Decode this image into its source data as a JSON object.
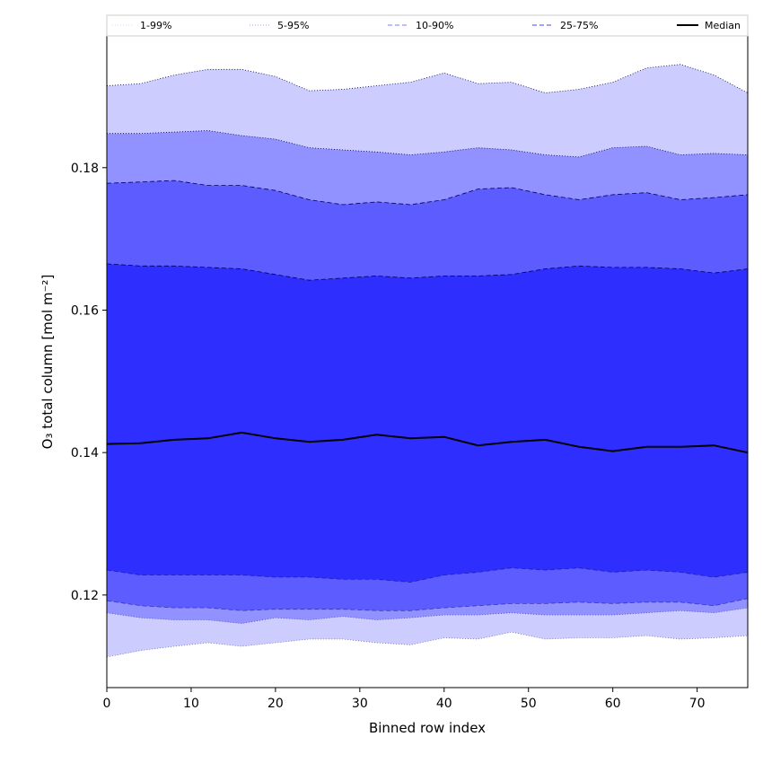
{
  "chart_data": {
    "type": "area",
    "xlabel": "Binned row index",
    "ylabel": "O₃ total column [mol m⁻²]",
    "xlim": [
      0,
      76
    ],
    "ylim": [
      0.107,
      0.1985
    ],
    "x_ticks": [
      "0",
      "10",
      "20",
      "30",
      "40",
      "50",
      "60",
      "70"
    ],
    "y_ticks": [
      "0.12",
      "0.14",
      "0.16",
      "0.18"
    ],
    "x_tick_values": [
      0,
      10,
      20,
      30,
      40,
      50,
      60,
      70
    ],
    "y_tick_values": [
      0.12,
      0.14,
      0.16,
      0.18
    ],
    "grid": false,
    "legend_position": "top",
    "x": [
      0,
      4,
      8,
      12,
      16,
      20,
      24,
      28,
      32,
      36,
      40,
      44,
      48,
      52,
      56,
      60,
      64,
      68,
      72,
      76
    ],
    "bands": [
      {
        "name": "1-99%",
        "color": "#ccccff",
        "edge_style": "dotted",
        "lower": [
          0.1113,
          0.1122,
          0.1128,
          0.1133,
          0.1128,
          0.1133,
          0.1138,
          0.1138,
          0.1133,
          0.113,
          0.114,
          0.1138,
          0.1148,
          0.1138,
          0.114,
          0.114,
          0.1143,
          0.1138,
          0.114,
          0.1143
        ],
        "upper": [
          0.1915,
          0.1918,
          0.193,
          0.1938,
          0.1938,
          0.1928,
          0.1908,
          0.191,
          0.1915,
          0.192,
          0.1933,
          0.1918,
          0.192,
          0.1905,
          0.191,
          0.192,
          0.194,
          0.1945,
          0.193,
          0.1905
        ]
      },
      {
        "name": "5-95%",
        "color": "#9191ff",
        "edge_style": "dotted",
        "lower": [
          0.1175,
          0.1168,
          0.1165,
          0.1165,
          0.116,
          0.1168,
          0.1165,
          0.117,
          0.1165,
          0.1168,
          0.1172,
          0.1172,
          0.1175,
          0.1172,
          0.1172,
          0.1172,
          0.1175,
          0.1178,
          0.1175,
          0.1182
        ],
        "upper": [
          0.1848,
          0.1848,
          0.185,
          0.1852,
          0.1845,
          0.184,
          0.1828,
          0.1825,
          0.1822,
          0.1818,
          0.1822,
          0.1828,
          0.1825,
          0.1818,
          0.1815,
          0.1828,
          0.183,
          0.1818,
          0.182,
          0.1818
        ]
      },
      {
        "name": "10-90%",
        "color": "#5c5cff",
        "edge_style": "dashed",
        "lower": [
          0.1192,
          0.1185,
          0.1182,
          0.1182,
          0.1178,
          0.118,
          0.118,
          0.118,
          0.1178,
          0.1178,
          0.1182,
          0.1185,
          0.1188,
          0.1188,
          0.119,
          0.1188,
          0.119,
          0.119,
          0.1185,
          0.1195
        ],
        "upper": [
          0.1778,
          0.178,
          0.1782,
          0.1775,
          0.1775,
          0.1768,
          0.1755,
          0.1748,
          0.1752,
          0.1748,
          0.1755,
          0.177,
          0.1772,
          0.1762,
          0.1755,
          0.1762,
          0.1765,
          0.1755,
          0.1758,
          0.1762
        ]
      },
      {
        "name": "25-75%",
        "color": "#2e2eff",
        "edge_style": "dashed",
        "lower": [
          0.1235,
          0.1228,
          0.1228,
          0.1228,
          0.1228,
          0.1225,
          0.1225,
          0.1222,
          0.1222,
          0.1218,
          0.1228,
          0.1232,
          0.1238,
          0.1235,
          0.1238,
          0.1232,
          0.1235,
          0.1232,
          0.1225,
          0.1232
        ],
        "upper": [
          0.1665,
          0.1662,
          0.1662,
          0.166,
          0.1658,
          0.165,
          0.1642,
          0.1645,
          0.1648,
          0.1645,
          0.1648,
          0.1648,
          0.165,
          0.1658,
          0.1662,
          0.166,
          0.166,
          0.1658,
          0.1652,
          0.1658
        ]
      }
    ],
    "series": [
      {
        "name": "Median",
        "color": "#000000",
        "values": [
          0.1412,
          0.1413,
          0.1418,
          0.142,
          0.1428,
          0.142,
          0.1415,
          0.1418,
          0.1425,
          0.142,
          0.1422,
          0.141,
          0.1415,
          0.1418,
          0.1408,
          0.1402,
          0.1408,
          0.1408,
          0.141,
          0.14
        ]
      }
    ],
    "legend": [
      "1-99%",
      "5-95%",
      "10-90%",
      "25-75%",
      "Median"
    ]
  }
}
